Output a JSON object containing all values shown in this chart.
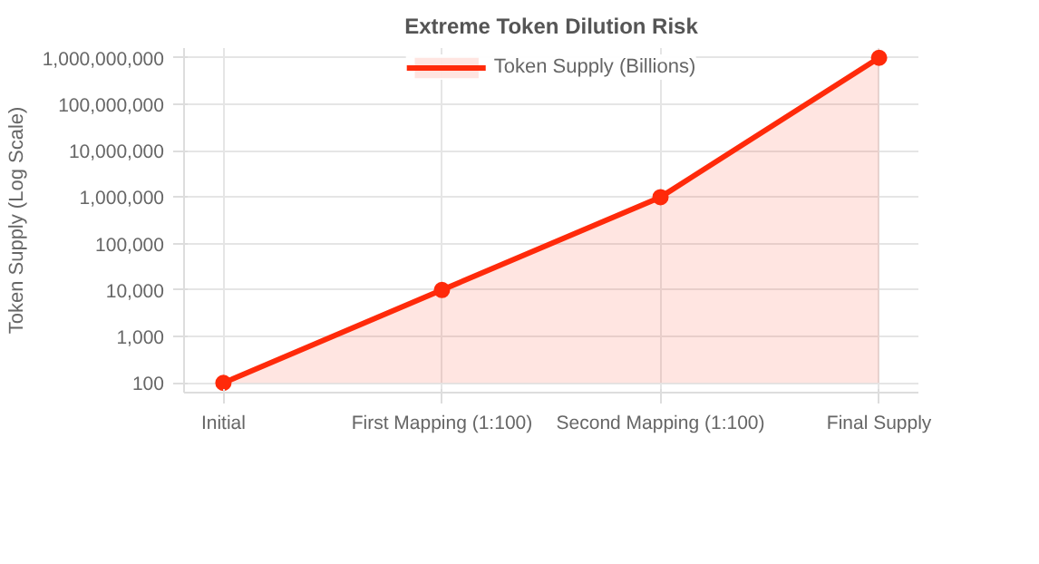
{
  "chart_data": {
    "type": "area",
    "title": "Extreme Token Dilution Risk",
    "ylabel": "Token Supply (Log Scale)",
    "categories": [
      "Initial",
      "First Mapping (1:100)",
      "Second Mapping (1:100)",
      "Final Supply"
    ],
    "series": [
      {
        "name": "Token Supply (Billions)",
        "color": "#ff2a0a",
        "values": [
          100,
          10000,
          1000000,
          1000000000
        ]
      }
    ],
    "log": "y",
    "ylim": [
      100,
      1000000000
    ],
    "yticks": [
      {
        "value": 100,
        "label": "100"
      },
      {
        "value": 1000,
        "label": "1,000"
      },
      {
        "value": 10000,
        "label": "10,000"
      },
      {
        "value": 100000,
        "label": "100,000"
      },
      {
        "value": 1000000,
        "label": "1,000,000"
      },
      {
        "value": 10000000,
        "label": "10,000,000"
      },
      {
        "value": 100000000,
        "label": "100,000,000"
      },
      {
        "value": 1000000000,
        "label": "1,000,000,000"
      }
    ],
    "grid": true,
    "legend": "top",
    "marker": "circle",
    "line_style": "solid"
  }
}
